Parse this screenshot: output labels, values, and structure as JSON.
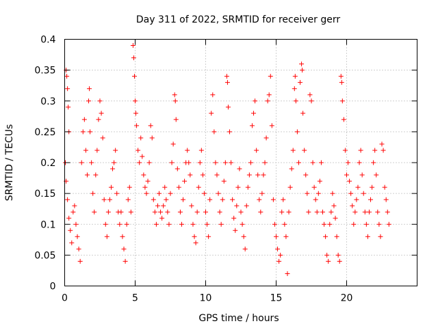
{
  "chart_data": {
    "type": "scatter",
    "title": "Day 311 of 2022, SRMTID for receiver gerr",
    "xlabel": "GPS time / hours",
    "ylabel": "SRMTID / TECUs",
    "xlim": [
      0,
      25
    ],
    "ylim": [
      0,
      0.4
    ],
    "xticks": [
      0,
      5,
      10,
      15,
      20
    ],
    "xtick_labels": [
      "0",
      "5",
      "10",
      "15",
      "20"
    ],
    "yticks": [
      0,
      0.05,
      0.1,
      0.15,
      0.2,
      0.25,
      0.3,
      0.35,
      0.4
    ],
    "ytick_labels": [
      "0",
      "0.05",
      "0.1",
      "0.15",
      "0.2",
      "0.25",
      "0.3",
      "0.35",
      "0.4"
    ],
    "grid": true,
    "marker": "+",
    "color": "#ff0000",
    "series": [
      {
        "name": "SRMTID",
        "points": [
          [
            0.1,
            0.35
          ],
          [
            0.15,
            0.34
          ],
          [
            0.2,
            0.32
          ],
          [
            0.25,
            0.29
          ],
          [
            0.3,
            0.25
          ],
          [
            0.05,
            0.2
          ],
          [
            0.1,
            0.17
          ],
          [
            0.2,
            0.14
          ],
          [
            0.3,
            0.11
          ],
          [
            0.4,
            0.09
          ],
          [
            0.5,
            0.07
          ],
          [
            0.6,
            0.12
          ],
          [
            0.7,
            0.13
          ],
          [
            0.8,
            0.1
          ],
          [
            0.9,
            0.08
          ],
          [
            1.0,
            0.06
          ],
          [
            1.1,
            0.04
          ],
          [
            1.2,
            0.2
          ],
          [
            1.3,
            0.25
          ],
          [
            1.4,
            0.27
          ],
          [
            1.5,
            0.22
          ],
          [
            1.6,
            0.18
          ],
          [
            1.7,
            0.3
          ],
          [
            1.75,
            0.32
          ],
          [
            1.8,
            0.25
          ],
          [
            1.9,
            0.2
          ],
          [
            2.0,
            0.15
          ],
          [
            2.1,
            0.12
          ],
          [
            2.2,
            0.18
          ],
          [
            2.3,
            0.22
          ],
          [
            2.4,
            0.27
          ],
          [
            2.5,
            0.3
          ],
          [
            2.6,
            0.28
          ],
          [
            2.7,
            0.24
          ],
          [
            2.8,
            0.14
          ],
          [
            2.9,
            0.1
          ],
          [
            3.0,
            0.08
          ],
          [
            3.1,
            0.12
          ],
          [
            3.2,
            0.14
          ],
          [
            3.3,
            0.16
          ],
          [
            3.4,
            0.19
          ],
          [
            3.5,
            0.2
          ],
          [
            3.6,
            0.22
          ],
          [
            3.7,
            0.15
          ],
          [
            3.8,
            0.12
          ],
          [
            3.9,
            0.1
          ],
          [
            4.0,
            0.12
          ],
          [
            4.1,
            0.08
          ],
          [
            4.2,
            0.06
          ],
          [
            4.3,
            0.04
          ],
          [
            4.4,
            0.1
          ],
          [
            4.5,
            0.14
          ],
          [
            4.6,
            0.16
          ],
          [
            4.7,
            0.12
          ],
          [
            4.85,
            0.39
          ],
          [
            4.9,
            0.37
          ],
          [
            4.95,
            0.34
          ],
          [
            5.0,
            0.3
          ],
          [
            5.05,
            0.28
          ],
          [
            5.1,
            0.26
          ],
          [
            5.2,
            0.22
          ],
          [
            5.3,
            0.2
          ],
          [
            5.4,
            0.24
          ],
          [
            5.5,
            0.21
          ],
          [
            5.6,
            0.18
          ],
          [
            5.7,
            0.16
          ],
          [
            5.8,
            0.15
          ],
          [
            5.9,
            0.17
          ],
          [
            6.0,
            0.2
          ],
          [
            6.1,
            0.26
          ],
          [
            6.2,
            0.24
          ],
          [
            6.3,
            0.14
          ],
          [
            6.4,
            0.12
          ],
          [
            6.5,
            0.1
          ],
          [
            6.6,
            0.13
          ],
          [
            6.7,
            0.15
          ],
          [
            6.8,
            0.12
          ],
          [
            6.9,
            0.11
          ],
          [
            7.0,
            0.13
          ],
          [
            7.1,
            0.16
          ],
          [
            7.2,
            0.14
          ],
          [
            7.3,
            0.12
          ],
          [
            7.4,
            0.1
          ],
          [
            7.5,
            0.15
          ],
          [
            7.6,
            0.2
          ],
          [
            7.7,
            0.23
          ],
          [
            7.8,
            0.31
          ],
          [
            7.85,
            0.3
          ],
          [
            7.9,
            0.27
          ],
          [
            8.0,
            0.19
          ],
          [
            8.1,
            0.16
          ],
          [
            8.2,
            0.12
          ],
          [
            8.3,
            0.1
          ],
          [
            8.4,
            0.14
          ],
          [
            8.5,
            0.17
          ],
          [
            8.6,
            0.2
          ],
          [
            8.7,
            0.22
          ],
          [
            8.8,
            0.2
          ],
          [
            8.9,
            0.18
          ],
          [
            9.0,
            0.13
          ],
          [
            9.1,
            0.1
          ],
          [
            9.2,
            0.08
          ],
          [
            9.3,
            0.07
          ],
          [
            9.4,
            0.12
          ],
          [
            9.5,
            0.16
          ],
          [
            9.6,
            0.2
          ],
          [
            9.7,
            0.22
          ],
          [
            9.8,
            0.18
          ],
          [
            9.9,
            0.15
          ],
          [
            10.0,
            0.12
          ],
          [
            10.1,
            0.1
          ],
          [
            10.2,
            0.08
          ],
          [
            10.3,
            0.14
          ],
          [
            10.4,
            0.28
          ],
          [
            10.5,
            0.31
          ],
          [
            10.6,
            0.25
          ],
          [
            10.7,
            0.2
          ],
          [
            10.8,
            0.18
          ],
          [
            10.9,
            0.15
          ],
          [
            11.0,
            0.12
          ],
          [
            11.1,
            0.1
          ],
          [
            11.2,
            0.14
          ],
          [
            11.3,
            0.17
          ],
          [
            11.4,
            0.2
          ],
          [
            11.5,
            0.34
          ],
          [
            11.55,
            0.33
          ],
          [
            11.6,
            0.29
          ],
          [
            11.7,
            0.25
          ],
          [
            11.8,
            0.2
          ],
          [
            11.9,
            0.14
          ],
          [
            12.0,
            0.11
          ],
          [
            12.1,
            0.09
          ],
          [
            12.2,
            0.13
          ],
          [
            12.3,
            0.16
          ],
          [
            12.4,
            0.19
          ],
          [
            12.5,
            0.12
          ],
          [
            12.6,
            0.1
          ],
          [
            12.7,
            0.08
          ],
          [
            12.8,
            0.06
          ],
          [
            12.9,
            0.13
          ],
          [
            13.0,
            0.16
          ],
          [
            13.1,
            0.18
          ],
          [
            13.2,
            0.2
          ],
          [
            13.3,
            0.26
          ],
          [
            13.4,
            0.28
          ],
          [
            13.5,
            0.3
          ],
          [
            13.6,
            0.22
          ],
          [
            13.7,
            0.18
          ],
          [
            13.8,
            0.14
          ],
          [
            13.9,
            0.12
          ],
          [
            14.0,
            0.15
          ],
          [
            14.1,
            0.18
          ],
          [
            14.2,
            0.2
          ],
          [
            14.3,
            0.24
          ],
          [
            14.4,
            0.3
          ],
          [
            14.5,
            0.31
          ],
          [
            14.6,
            0.34
          ],
          [
            14.7,
            0.26
          ],
          [
            14.8,
            0.14
          ],
          [
            14.9,
            0.1
          ],
          [
            15.0,
            0.08
          ],
          [
            15.1,
            0.06
          ],
          [
            15.2,
            0.04
          ],
          [
            15.3,
            0.05
          ],
          [
            15.4,
            0.12
          ],
          [
            15.5,
            0.14
          ],
          [
            15.6,
            0.1
          ],
          [
            15.7,
            0.08
          ],
          [
            15.8,
            0.02
          ],
          [
            15.9,
            0.12
          ],
          [
            16.0,
            0.16
          ],
          [
            16.1,
            0.19
          ],
          [
            16.2,
            0.22
          ],
          [
            16.3,
            0.32
          ],
          [
            16.35,
            0.34
          ],
          [
            16.4,
            0.3
          ],
          [
            16.5,
            0.25
          ],
          [
            16.6,
            0.2
          ],
          [
            16.7,
            0.33
          ],
          [
            16.8,
            0.36
          ],
          [
            16.85,
            0.35
          ],
          [
            16.9,
            0.28
          ],
          [
            17.0,
            0.22
          ],
          [
            17.1,
            0.18
          ],
          [
            17.2,
            0.15
          ],
          [
            17.3,
            0.12
          ],
          [
            17.4,
            0.31
          ],
          [
            17.5,
            0.3
          ],
          [
            17.6,
            0.2
          ],
          [
            17.7,
            0.16
          ],
          [
            17.8,
            0.14
          ],
          [
            17.9,
            0.12
          ],
          [
            18.0,
            0.15
          ],
          [
            18.1,
            0.17
          ],
          [
            18.2,
            0.2
          ],
          [
            18.3,
            0.12
          ],
          [
            18.4,
            0.1
          ],
          [
            18.5,
            0.08
          ],
          [
            18.6,
            0.05
          ],
          [
            18.7,
            0.04
          ],
          [
            18.8,
            0.1
          ],
          [
            18.9,
            0.12
          ],
          [
            19.0,
            0.15
          ],
          [
            19.1,
            0.13
          ],
          [
            19.2,
            0.11
          ],
          [
            19.3,
            0.08
          ],
          [
            19.4,
            0.05
          ],
          [
            19.5,
            0.04
          ],
          [
            19.6,
            0.34
          ],
          [
            19.65,
            0.33
          ],
          [
            19.7,
            0.3
          ],
          [
            19.8,
            0.27
          ],
          [
            19.9,
            0.22
          ],
          [
            20.0,
            0.18
          ],
          [
            20.1,
            0.2
          ],
          [
            20.2,
            0.17
          ],
          [
            20.3,
            0.15
          ],
          [
            20.4,
            0.13
          ],
          [
            20.5,
            0.1
          ],
          [
            20.6,
            0.12
          ],
          [
            20.7,
            0.14
          ],
          [
            20.8,
            0.16
          ],
          [
            20.9,
            0.2
          ],
          [
            21.0,
            0.22
          ],
          [
            21.1,
            0.18
          ],
          [
            21.2,
            0.15
          ],
          [
            21.3,
            0.12
          ],
          [
            21.4,
            0.1
          ],
          [
            21.5,
            0.08
          ],
          [
            21.6,
            0.12
          ],
          [
            21.7,
            0.14
          ],
          [
            21.8,
            0.16
          ],
          [
            21.9,
            0.2
          ],
          [
            22.0,
            0.22
          ],
          [
            22.1,
            0.18
          ],
          [
            22.2,
            0.12
          ],
          [
            22.3,
            0.1
          ],
          [
            22.4,
            0.08
          ],
          [
            22.5,
            0.23
          ],
          [
            22.6,
            0.22
          ],
          [
            22.7,
            0.16
          ],
          [
            22.8,
            0.14
          ],
          [
            22.9,
            0.12
          ],
          [
            23.0,
            0.1
          ]
        ]
      }
    ]
  }
}
